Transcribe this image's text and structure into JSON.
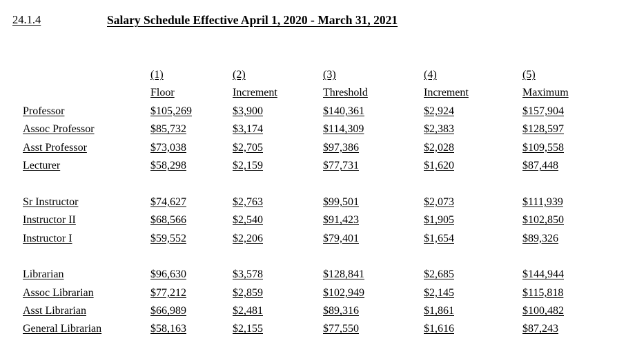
{
  "heading": {
    "section_number": "24.1.4",
    "title": "Salary Schedule Effective April 1, 2020 - March 31, 2021"
  },
  "table": {
    "column_numbers": [
      "(1)",
      "(2)",
      "(3)",
      "(4)",
      "(5)"
    ],
    "column_headers": [
      "Floor",
      "Increment",
      "Threshold",
      "Increment",
      "Maximum"
    ],
    "groups": [
      {
        "rows": [
          {
            "label": "Professor",
            "values": [
              "$105,269",
              "$3,900",
              "$140,361",
              "$2,924",
              "$157,904"
            ]
          },
          {
            "label": "Assoc Professor",
            "values": [
              "$85,732",
              "$3,174",
              "$114,309",
              "$2,383",
              "$128,597"
            ]
          },
          {
            "label": "Asst Professor",
            "values": [
              "$73,038",
              "$2,705",
              "$97,386",
              "$2,028",
              "$109,558"
            ]
          },
          {
            "label": "Lecturer",
            "values": [
              "$58,298",
              "$2,159",
              "$77,731",
              "$1,620",
              "$87,448"
            ]
          }
        ]
      },
      {
        "rows": [
          {
            "label": "Sr Instructor",
            "values": [
              "$74,627",
              "$2,763",
              "$99,501",
              "$2,073",
              "$111,939"
            ]
          },
          {
            "label": "Instructor II",
            "values": [
              "$68,566",
              "$2,540",
              "$91,423",
              "$1,905",
              "$102,850"
            ]
          },
          {
            "label": "Instructor I",
            "values": [
              "$59,552",
              "$2,206",
              "$79,401",
              "$1,654",
              "$89,326"
            ]
          }
        ]
      },
      {
        "rows": [
          {
            "label": "Librarian",
            "values": [
              "$96,630",
              "$3,578",
              "$128,841",
              "$2,685",
              "$144,944"
            ]
          },
          {
            "label": "Assoc Librarian",
            "values": [
              "$77,212",
              "$2,859",
              "$102,949",
              "$2,145",
              "$115,818"
            ]
          },
          {
            "label": "Asst Librarian",
            "values": [
              "$66,989",
              "$2,481",
              "$89,316",
              "$1,861",
              "$100,482"
            ]
          },
          {
            "label": "General Librarian",
            "values": [
              "$58,163",
              "$2,155",
              "$77,550",
              "$1,616",
              "$87,243"
            ]
          }
        ]
      }
    ]
  }
}
